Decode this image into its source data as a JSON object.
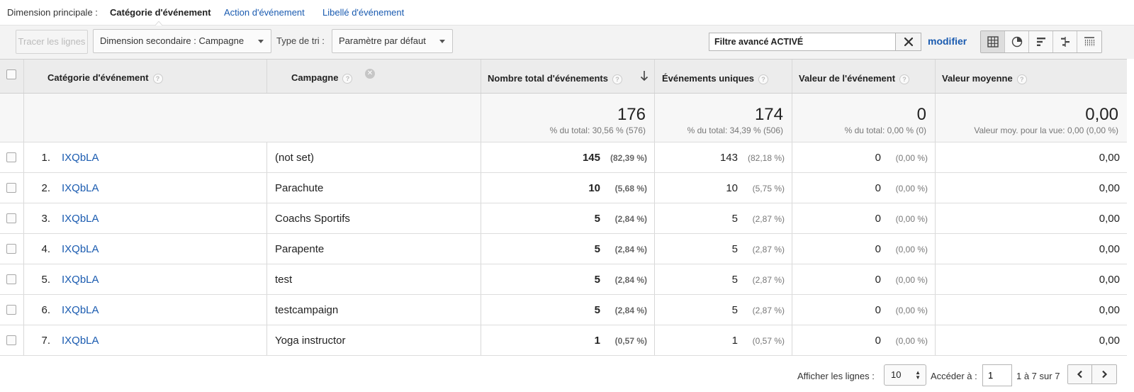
{
  "primary_dimension": {
    "label": "Dimension principale :",
    "current": "Catégorie d'événement",
    "links": [
      "Action d'événement",
      "Libellé d'événement"
    ]
  },
  "toolbar": {
    "plot_rows": "Tracer les lignes",
    "secondary_dimension": "Dimension secondaire : Campagne",
    "sort_label": "Type de tri :",
    "sort_value": "Paramètre par défaut",
    "filter_value": "Filtre avancé ACTIVÉ",
    "modify": "modifier"
  },
  "table": {
    "headers": {
      "category": "Catégorie d'événement",
      "campaign": "Campagne",
      "total_events": "Nombre total d'événements",
      "unique_events": "Événements uniques",
      "event_value": "Valeur de l'événement",
      "avg_value": "Valeur moyenne"
    },
    "help_glyph": "?",
    "remove_glyph": "✕",
    "totals": {
      "total_events": "176",
      "total_events_sub": "% du total: 30,56 % (576)",
      "unique_events": "174",
      "unique_events_sub": "% du total: 34,39 % (506)",
      "event_value": "0",
      "event_value_sub": "% du total: 0,00 % (0)",
      "avg_value": "0,00",
      "avg_value_sub": "Valeur moy. pour la vue: 0,00 (0,00 %)"
    },
    "rows": [
      {
        "num": "1.",
        "category": "IXQbLA",
        "campaign": "(not set)",
        "total": "145",
        "total_pct": "(82,39 %)",
        "unique": "143",
        "unique_pct": "(82,18 %)",
        "value": "0",
        "value_pct": "(0,00 %)",
        "avg": "0,00"
      },
      {
        "num": "2.",
        "category": "IXQbLA",
        "campaign": "Parachute",
        "total": "10",
        "total_pct": "(5,68 %)",
        "unique": "10",
        "unique_pct": "(5,75 %)",
        "value": "0",
        "value_pct": "(0,00 %)",
        "avg": "0,00"
      },
      {
        "num": "3.",
        "category": "IXQbLA",
        "campaign": "Coachs Sportifs",
        "total": "5",
        "total_pct": "(2,84 %)",
        "unique": "5",
        "unique_pct": "(2,87 %)",
        "value": "0",
        "value_pct": "(0,00 %)",
        "avg": "0,00"
      },
      {
        "num": "4.",
        "category": "IXQbLA",
        "campaign": "Parapente",
        "total": "5",
        "total_pct": "(2,84 %)",
        "unique": "5",
        "unique_pct": "(2,87 %)",
        "value": "0",
        "value_pct": "(0,00 %)",
        "avg": "0,00"
      },
      {
        "num": "5.",
        "category": "IXQbLA",
        "campaign": "test",
        "total": "5",
        "total_pct": "(2,84 %)",
        "unique": "5",
        "unique_pct": "(2,87 %)",
        "value": "0",
        "value_pct": "(0,00 %)",
        "avg": "0,00"
      },
      {
        "num": "6.",
        "category": "IXQbLA",
        "campaign": "testcampaign",
        "total": "5",
        "total_pct": "(2,84 %)",
        "unique": "5",
        "unique_pct": "(2,87 %)",
        "value": "0",
        "value_pct": "(0,00 %)",
        "avg": "0,00"
      },
      {
        "num": "7.",
        "category": "IXQbLA",
        "campaign": "Yoga instructor",
        "total": "1",
        "total_pct": "(0,57 %)",
        "unique": "1",
        "unique_pct": "(0,57 %)",
        "value": "0",
        "value_pct": "(0,00 %)",
        "avg": "0,00"
      }
    ]
  },
  "footer": {
    "show_rows_label": "Afficher les lignes :",
    "show_rows_value": "10",
    "goto_label": "Accéder à :",
    "goto_value": "1",
    "range": "1 à 7 sur 7"
  },
  "icons": [
    "sort-down-arrow-icon",
    "clear-filter-icon",
    "table-view-icon",
    "pie-view-icon",
    "bar-view-icon",
    "comparison-view-icon",
    "pivot-view-icon",
    "prev-page-icon",
    "next-page-icon"
  ]
}
